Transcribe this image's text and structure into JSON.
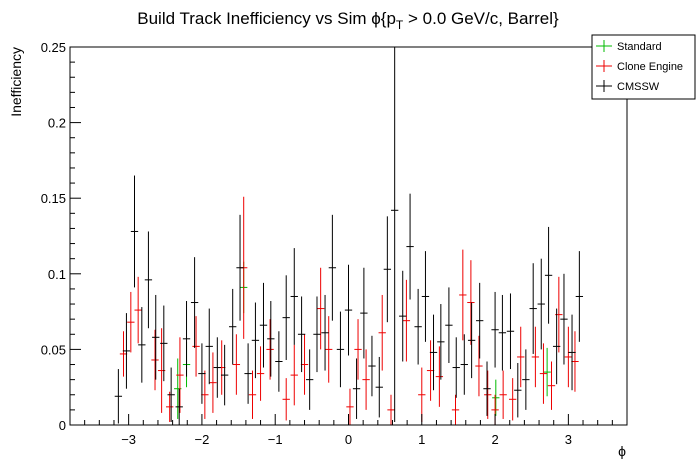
{
  "chart_data": {
    "type": "scatter",
    "title": "Build Track Inefficiency vs Sim ϕ{p",
    "title_sub": "T",
    "title_tail": " > 0.0 GeV/c, Barrel}",
    "xlabel": "ϕ",
    "ylabel": "Inefficiency",
    "xlim": [
      -3.8,
      3.8
    ],
    "ylim": [
      0,
      0.25
    ],
    "xticks": [
      -3,
      -2,
      -1,
      0,
      1,
      2,
      3
    ],
    "xtick_labels": [
      "−3",
      "−2",
      "−1",
      "0",
      "1",
      "2",
      "3"
    ],
    "yticks": [
      0,
      0.05,
      0.1,
      0.15,
      0.2,
      0.25
    ],
    "ytick_labels": [
      "0",
      "0.05",
      "0.1",
      "0.15",
      "0.2",
      "0.25"
    ],
    "legend": {
      "position": "top-right",
      "entries": [
        "Standard",
        "Clone Engine",
        "CMSSW"
      ]
    },
    "bin_halfwidth": 0.05,
    "series": [
      {
        "name": "Standard",
        "color": "#00bb00",
        "points": [
          {
            "x": -2.33,
            "y": 0.024,
            "err": 0.02
          },
          {
            "x": -2.21,
            "y": 0.04,
            "err": 0.015
          },
          {
            "x": -1.43,
            "y": 0.091,
            "err": 0.017
          },
          {
            "x": 2.01,
            "y": 0.018,
            "err": 0.012
          },
          {
            "x": 2.71,
            "y": 0.035,
            "err": 0.016
          }
        ]
      },
      {
        "name": "Clone Engine",
        "color": "#ee0000",
        "points": [
          {
            "x": -3.07,
            "y": 0.047,
            "err": 0.015
          },
          {
            "x": -2.97,
            "y": 0.068,
            "err": 0.02
          },
          {
            "x": -2.87,
            "y": 0.076,
            "err": 0.022
          },
          {
            "x": -2.64,
            "y": 0.043,
            "err": 0.02
          },
          {
            "x": -2.55,
            "y": 0.036,
            "err": 0.028
          },
          {
            "x": -2.44,
            "y": 0.012,
            "err": 0.01
          },
          {
            "x": -2.3,
            "y": 0.033,
            "err": 0.025
          },
          {
            "x": -2.08,
            "y": 0.052,
            "err": 0.02
          },
          {
            "x": -1.96,
            "y": 0.02,
            "err": 0.016
          },
          {
            "x": -1.85,
            "y": 0.028,
            "err": 0.02
          },
          {
            "x": -1.73,
            "y": 0.038,
            "err": 0.018
          },
          {
            "x": -1.53,
            "y": 0.04,
            "err": 0.02
          },
          {
            "x": -1.43,
            "y": 0.104,
            "err": 0.047
          },
          {
            "x": -1.31,
            "y": 0.02,
            "err": 0.016
          },
          {
            "x": -1.2,
            "y": 0.034,
            "err": 0.018
          },
          {
            "x": -1.07,
            "y": 0.05,
            "err": 0.02
          },
          {
            "x": -0.85,
            "y": 0.017,
            "err": 0.014
          },
          {
            "x": -0.74,
            "y": 0.033,
            "err": 0.02
          },
          {
            "x": -0.6,
            "y": 0.04,
            "err": 0.02
          },
          {
            "x": -0.38,
            "y": 0.077,
            "err": 0.027
          },
          {
            "x": -0.27,
            "y": 0.05,
            "err": 0.022
          },
          {
            "x": 0.02,
            "y": 0.012,
            "err": 0.012
          },
          {
            "x": 0.13,
            "y": 0.05,
            "err": 0.02
          },
          {
            "x": 0.24,
            "y": 0.03,
            "err": 0.02
          },
          {
            "x": 0.46,
            "y": 0.061,
            "err": 0.025
          },
          {
            "x": 0.58,
            "y": 0.01,
            "err": 0.01
          },
          {
            "x": 0.79,
            "y": 0.069,
            "err": 0.027
          },
          {
            "x": 1.0,
            "y": 0.02,
            "err": 0.018
          },
          {
            "x": 1.12,
            "y": 0.036,
            "err": 0.02
          },
          {
            "x": 1.24,
            "y": 0.032,
            "err": 0.02
          },
          {
            "x": 1.46,
            "y": 0.01,
            "err": 0.01
          },
          {
            "x": 1.56,
            "y": 0.086,
            "err": 0.03
          },
          {
            "x": 1.67,
            "y": 0.081,
            "err": 0.028
          },
          {
            "x": 1.78,
            "y": 0.039,
            "err": 0.02
          },
          {
            "x": 1.9,
            "y": 0.02,
            "err": 0.016
          },
          {
            "x": 2.0,
            "y": 0.01,
            "err": 0.01
          },
          {
            "x": 2.11,
            "y": 0.02,
            "err": 0.016
          },
          {
            "x": 2.24,
            "y": 0.017,
            "err": 0.014
          },
          {
            "x": 2.35,
            "y": 0.045,
            "err": 0.02
          },
          {
            "x": 2.55,
            "y": 0.045,
            "err": 0.02
          },
          {
            "x": 2.66,
            "y": 0.034,
            "err": 0.02
          },
          {
            "x": 2.77,
            "y": 0.026,
            "err": 0.016
          },
          {
            "x": 2.87,
            "y": 0.073,
            "err": 0.025
          },
          {
            "x": 3.0,
            "y": 0.045,
            "err": 0.02
          },
          {
            "x": 3.09,
            "y": 0.042,
            "err": 0.02
          }
        ]
      },
      {
        "name": "CMSSW",
        "color": "#000000",
        "points": [
          {
            "x": -3.14,
            "y": 0.019,
            "err": 0.018
          },
          {
            "x": -3.03,
            "y": 0.049,
            "err": 0.025
          },
          {
            "x": -2.92,
            "y": 0.128,
            "err": 0.037
          },
          {
            "x": -2.82,
            "y": 0.053,
            "err": 0.025
          },
          {
            "x": -2.73,
            "y": 0.096,
            "err": 0.032
          },
          {
            "x": -2.63,
            "y": 0.058,
            "err": 0.028
          },
          {
            "x": -2.52,
            "y": 0.054,
            "err": 0.025
          },
          {
            "x": -2.42,
            "y": 0.02,
            "err": 0.018
          },
          {
            "x": -2.31,
            "y": 0.012,
            "err": 0.012
          },
          {
            "x": -2.21,
            "y": 0.057,
            "err": 0.025
          },
          {
            "x": -2.1,
            "y": 0.081,
            "err": 0.03
          },
          {
            "x": -2.0,
            "y": 0.034,
            "err": 0.02
          },
          {
            "x": -1.9,
            "y": 0.052,
            "err": 0.025
          },
          {
            "x": -1.79,
            "y": 0.038,
            "err": 0.02
          },
          {
            "x": -1.69,
            "y": 0.033,
            "err": 0.02
          },
          {
            "x": -1.58,
            "y": 0.065,
            "err": 0.025
          },
          {
            "x": -1.48,
            "y": 0.104,
            "err": 0.035
          },
          {
            "x": -1.37,
            "y": 0.034,
            "err": 0.02
          },
          {
            "x": -1.27,
            "y": 0.056,
            "err": 0.025
          },
          {
            "x": -1.16,
            "y": 0.066,
            "err": 0.028
          },
          {
            "x": -1.06,
            "y": 0.057,
            "err": 0.025
          },
          {
            "x": -0.95,
            "y": 0.042,
            "err": 0.02
          },
          {
            "x": -0.85,
            "y": 0.071,
            "err": 0.028
          },
          {
            "x": -0.74,
            "y": 0.085,
            "err": 0.032
          },
          {
            "x": -0.64,
            "y": 0.06,
            "err": 0.025
          },
          {
            "x": -0.53,
            "y": 0.03,
            "err": 0.02
          },
          {
            "x": -0.43,
            "y": 0.06,
            "err": 0.025
          },
          {
            "x": -0.32,
            "y": 0.061,
            "err": 0.025
          },
          {
            "x": -0.22,
            "y": 0.104,
            "err": 0.035
          },
          {
            "x": -0.11,
            "y": 0.05,
            "err": 0.025
          },
          {
            "x": 0.0,
            "y": 0.076,
            "err": 0.03
          },
          {
            "x": 0.11,
            "y": 0.024,
            "err": 0.02
          },
          {
            "x": 0.21,
            "y": 0.074,
            "err": 0.03
          },
          {
            "x": 0.32,
            "y": 0.039,
            "err": 0.02
          },
          {
            "x": 0.42,
            "y": 0.025,
            "err": 0.02
          },
          {
            "x": 0.53,
            "y": 0.103,
            "err": 0.035
          },
          {
            "x": 0.63,
            "y": 0.142,
            "err": 0.14
          },
          {
            "x": 0.74,
            "y": 0.072,
            "err": 0.03
          },
          {
            "x": 0.84,
            "y": 0.118,
            "err": 0.035
          },
          {
            "x": 0.95,
            "y": 0.065,
            "err": 0.025
          },
          {
            "x": 1.05,
            "y": 0.085,
            "err": 0.03
          },
          {
            "x": 1.16,
            "y": 0.048,
            "err": 0.025
          },
          {
            "x": 1.26,
            "y": 0.055,
            "err": 0.025
          },
          {
            "x": 1.37,
            "y": 0.066,
            "err": 0.025
          },
          {
            "x": 1.47,
            "y": 0.038,
            "err": 0.02
          },
          {
            "x": 1.58,
            "y": 0.04,
            "err": 0.02
          },
          {
            "x": 1.68,
            "y": 0.056,
            "err": 0.025
          },
          {
            "x": 1.79,
            "y": 0.069,
            "err": 0.025
          },
          {
            "x": 1.89,
            "y": 0.024,
            "err": 0.018
          },
          {
            "x": 2.0,
            "y": 0.063,
            "err": 0.025
          },
          {
            "x": 2.1,
            "y": 0.061,
            "err": 0.025
          },
          {
            "x": 2.21,
            "y": 0.062,
            "err": 0.025
          },
          {
            "x": 2.31,
            "y": 0.023,
            "err": 0.018
          },
          {
            "x": 2.42,
            "y": 0.03,
            "err": 0.02
          },
          {
            "x": 2.52,
            "y": 0.077,
            "err": 0.03
          },
          {
            "x": 2.63,
            "y": 0.08,
            "err": 0.03
          },
          {
            "x": 2.73,
            "y": 0.099,
            "err": 0.032
          },
          {
            "x": 2.84,
            "y": 0.052,
            "err": 0.025
          },
          {
            "x": 2.94,
            "y": 0.07,
            "err": 0.03
          },
          {
            "x": 3.05,
            "y": 0.048,
            "err": 0.025
          },
          {
            "x": 3.15,
            "y": 0.085,
            "err": 0.03
          }
        ]
      }
    ]
  }
}
